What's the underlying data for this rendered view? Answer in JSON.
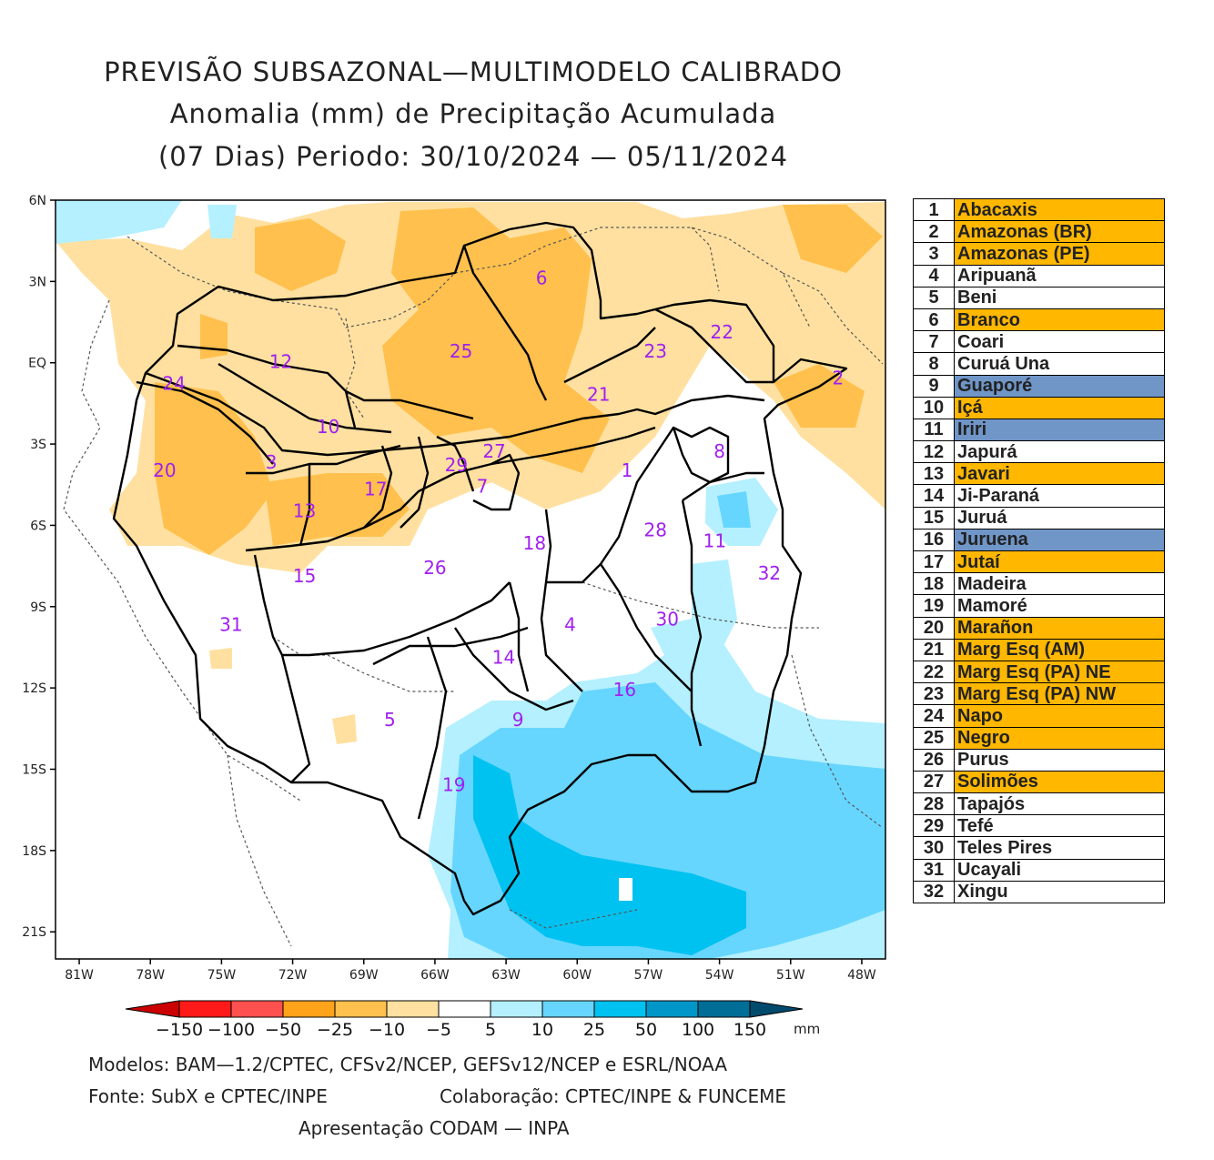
{
  "title": {
    "line1": "PREVISÃO SUBSAZONAL—MULTIMODELO CALIBRADO",
    "line2": "Anomalia (mm) de Precipitação Acumulada",
    "line3": "(07 Dias) Periodo: 30/10/2024 — 05/11/2024"
  },
  "map": {
    "lat_labels": [
      "6N",
      "3N",
      "EQ",
      "3S",
      "6S",
      "9S",
      "12S",
      "15S",
      "18S",
      "21S"
    ],
    "lat_values": [
      6,
      3,
      0,
      -3,
      -6,
      -9,
      -12,
      -15,
      -18,
      -21
    ],
    "lon_labels": [
      "81W",
      "78W",
      "75W",
      "72W",
      "69W",
      "66W",
      "63W",
      "60W",
      "57W",
      "54W",
      "51W",
      "48W"
    ],
    "lon_values": [
      -81,
      -78,
      -75,
      -72,
      -69,
      -66,
      -63,
      -60,
      -57,
      -54,
      -51,
      -48
    ],
    "lon_range": [
      -82,
      -47
    ],
    "lat_range": [
      -22,
      6
    ],
    "label_color": "#a020f0",
    "basin_labels": [
      {
        "n": "1",
        "lon": -57.9,
        "lat": -4.2
      },
      {
        "n": "2",
        "lon": -49.0,
        "lat": -0.8
      },
      {
        "n": "3",
        "lon": -72.9,
        "lat": -3.9
      },
      {
        "n": "4",
        "lon": -60.3,
        "lat": -9.9
      },
      {
        "n": "5",
        "lon": -67.9,
        "lat": -13.4
      },
      {
        "n": "6",
        "lon": -61.5,
        "lat": 2.9
      },
      {
        "n": "7",
        "lon": -64.0,
        "lat": -4.8
      },
      {
        "n": "8",
        "lon": -54.0,
        "lat": -3.5
      },
      {
        "n": "9",
        "lon": -62.5,
        "lat": -13.4
      },
      {
        "n": "10",
        "lon": -70.5,
        "lat": -2.6
      },
      {
        "n": "11",
        "lon": -54.2,
        "lat": -6.8
      },
      {
        "n": "12",
        "lon": -72.5,
        "lat": -0.2
      },
      {
        "n": "13",
        "lon": -71.5,
        "lat": -5.7
      },
      {
        "n": "14",
        "lon": -63.1,
        "lat": -11.1
      },
      {
        "n": "15",
        "lon": -71.5,
        "lat": -8.1
      },
      {
        "n": "16",
        "lon": -58.0,
        "lat": -12.3
      },
      {
        "n": "17",
        "lon": -68.5,
        "lat": -4.9
      },
      {
        "n": "18",
        "lon": -61.8,
        "lat": -6.9
      },
      {
        "n": "19",
        "lon": -65.2,
        "lat": -15.8
      },
      {
        "n": "20",
        "lon": -77.4,
        "lat": -4.2
      },
      {
        "n": "21",
        "lon": -59.1,
        "lat": -1.4
      },
      {
        "n": "22",
        "lon": -53.9,
        "lat": 0.9
      },
      {
        "n": "23",
        "lon": -56.7,
        "lat": 0.2
      },
      {
        "n": "24",
        "lon": -77.0,
        "lat": -1.0
      },
      {
        "n": "25",
        "lon": -64.9,
        "lat": 0.2
      },
      {
        "n": "26",
        "lon": -66.0,
        "lat": -7.8
      },
      {
        "n": "27",
        "lon": -63.5,
        "lat": -3.5
      },
      {
        "n": "28",
        "lon": -56.7,
        "lat": -6.4
      },
      {
        "n": "29",
        "lon": -65.1,
        "lat": -4.0
      },
      {
        "n": "30",
        "lon": -56.2,
        "lat": -9.7
      },
      {
        "n": "31",
        "lon": -74.6,
        "lat": -9.9
      },
      {
        "n": "32",
        "lon": -51.9,
        "lat": -8.0
      }
    ]
  },
  "basins": [
    {
      "n": "1",
      "name": "Abacaxis",
      "color": "#ffb700"
    },
    {
      "n": "2",
      "name": "Amazonas (BR)",
      "color": "#ffb700"
    },
    {
      "n": "3",
      "name": "Amazonas (PE)",
      "color": "#ffb700"
    },
    {
      "n": "4",
      "name": "Aripuanã",
      "color": "#ffffff"
    },
    {
      "n": "5",
      "name": "Beni",
      "color": "#ffffff"
    },
    {
      "n": "6",
      "name": "Branco",
      "color": "#ffb700"
    },
    {
      "n": "7",
      "name": "Coari",
      "color": "#ffffff"
    },
    {
      "n": "8",
      "name": "Curuá Una",
      "color": "#ffffff"
    },
    {
      "n": "9",
      "name": "Guaporé",
      "color": "#7096c8"
    },
    {
      "n": "10",
      "name": "Içá",
      "color": "#ffb700"
    },
    {
      "n": "11",
      "name": "Iriri",
      "color": "#7096c8"
    },
    {
      "n": "12",
      "name": "Japurá",
      "color": "#ffffff"
    },
    {
      "n": "13",
      "name": "Javari",
      "color": "#ffb700"
    },
    {
      "n": "14",
      "name": "Ji-Paraná",
      "color": "#ffffff"
    },
    {
      "n": "15",
      "name": "Juruá",
      "color": "#ffffff"
    },
    {
      "n": "16",
      "name": "Juruena",
      "color": "#7096c8"
    },
    {
      "n": "17",
      "name": "Jutaí",
      "color": "#ffb700"
    },
    {
      "n": "18",
      "name": "Madeira",
      "color": "#ffffff"
    },
    {
      "n": "19",
      "name": "Mamoré",
      "color": "#ffffff"
    },
    {
      "n": "20",
      "name": "Marañon",
      "color": "#ffb700"
    },
    {
      "n": "21",
      "name": "Marg Esq (AM)",
      "color": "#ffb700"
    },
    {
      "n": "22",
      "name": "Marg Esq (PA) NE",
      "color": "#ffb700"
    },
    {
      "n": "23",
      "name": "Marg Esq (PA) NW",
      "color": "#ffb700"
    },
    {
      "n": "24",
      "name": "Napo",
      "color": "#ffb700"
    },
    {
      "n": "25",
      "name": "Negro",
      "color": "#ffb700"
    },
    {
      "n": "26",
      "name": "Purus",
      "color": "#ffffff"
    },
    {
      "n": "27",
      "name": "Solimões",
      "color": "#ffb700"
    },
    {
      "n": "28",
      "name": "Tapajós",
      "color": "#ffffff"
    },
    {
      "n": "29",
      "name": "Tefé",
      "color": "#ffffff"
    },
    {
      "n": "30",
      "name": "Teles Pires",
      "color": "#ffffff"
    },
    {
      "n": "31",
      "name": "Ucayali",
      "color": "#ffffff"
    },
    {
      "n": "32",
      "name": "Xingu",
      "color": "#ffffff"
    }
  ],
  "colorbar": {
    "labels": [
      "−150",
      "−100",
      "−50",
      "−25",
      "−10",
      "−5",
      "5",
      "10",
      "25",
      "50",
      "100",
      "150"
    ],
    "colors": [
      "#cc0000",
      "#ff1a1a",
      "#ff5050",
      "#ffa31a",
      "#ffc04d",
      "#ffe0a0",
      "#ffffff",
      "#b4f0ff",
      "#66d6ff",
      "#00c2f0",
      "#0096c8",
      "#006e96",
      "#004a6e"
    ],
    "unit": "mm"
  },
  "credits": {
    "models": "Modelos: BAM—1.2/CPTEC, CFSv2/NCEP, GEFSv12/NCEP e ESRL/NOAA",
    "source": "Fonte: SubX e CPTEC/INPE",
    "collab": "Colaboração: CPTEC/INPE & FUNCEME",
    "presentation": "Apresentação CODAM — INPA"
  }
}
